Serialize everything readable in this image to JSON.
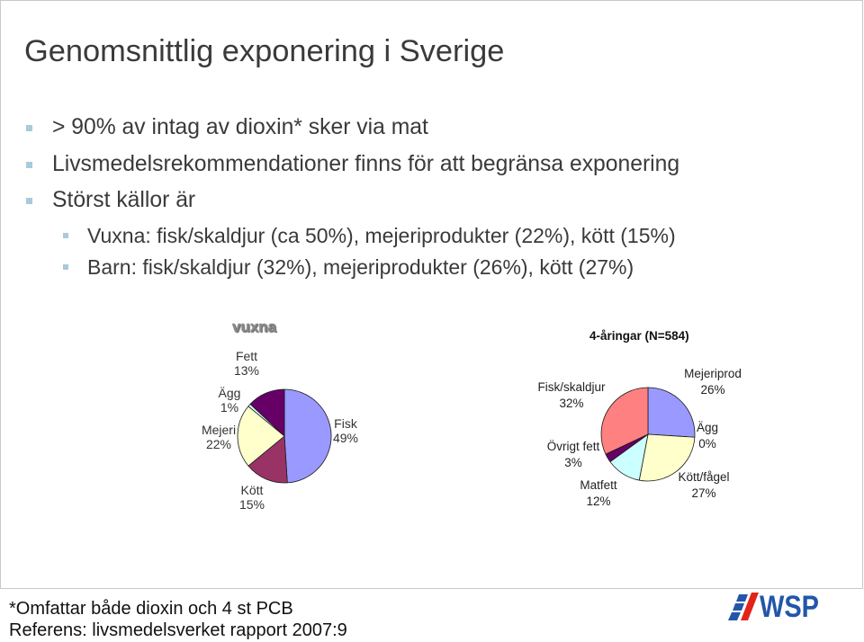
{
  "slide": {
    "title": "Genomsnittlig exponering i Sverige",
    "bullets": [
      {
        "text": "> 90% av intag av dioxin* sker via mat"
      },
      {
        "text": "Livsmedelsrekommendationer finns för att begränsa exponering"
      },
      {
        "text": "Störst källor är",
        "sub": [
          {
            "text": "Vuxna: fisk/skaldjur (ca 50%), mejeriprodukter (22%), kött (15%)"
          },
          {
            "text": "Barn: fisk/skaldjur (32%), mejeriprodukter (26%), kött (27%)"
          }
        ]
      }
    ],
    "footnote": "*Omfattar både dioxin och 4 st PCB",
    "reference": "Referens: livsmedelsverket rapport 2007:9"
  },
  "logo": {
    "text": "WSP",
    "icon": "wsp-logo-icon",
    "colors": {
      "red": "#e2231a",
      "blue": "#2356a8"
    }
  },
  "theme": {
    "text_color": "#3a3a3a",
    "bullet_color": "#a9cadb",
    "frame_color": "#c8c8c8",
    "bullet_icon": "square-bullet-icon"
  },
  "chart_data": [
    {
      "type": "pie",
      "title": "vuxna",
      "slices": [
        {
          "label": "Fisk",
          "value": 49,
          "value_label": "49%",
          "color": "#9999ff"
        },
        {
          "label": "Kött",
          "value": 15,
          "value_label": "15%",
          "color": "#993366"
        },
        {
          "label": "Mejeri",
          "value": 22,
          "value_label": "22%",
          "color": "#ffffcc"
        },
        {
          "label": "Ägg",
          "value": 1,
          "value_label": "1%",
          "color": "#ccffff"
        },
        {
          "label": "Fett",
          "value": 13,
          "value_label": "13%",
          "color": "#660066"
        }
      ]
    },
    {
      "type": "pie",
      "title": "4-åringar (N=584)",
      "slices": [
        {
          "label": "Mejeriprod",
          "value": 26,
          "value_label": "26%",
          "color": "#9999ff"
        },
        {
          "label": "Ägg",
          "value": 0,
          "value_label": "0%"
        },
        {
          "label": "Kött/fågel",
          "value": 27,
          "value_label": "27%",
          "color": "#ffffcc"
        },
        {
          "label": "Matfett",
          "value": 12,
          "value_label": "12%",
          "color": "#ccffff"
        },
        {
          "label": "Övrigt fett",
          "value": 3,
          "value_label": "3%",
          "color": "#660066"
        },
        {
          "label": "Fisk/skaldjur",
          "value": 32,
          "value_label": "32%",
          "color": "#ff8080"
        }
      ]
    }
  ]
}
